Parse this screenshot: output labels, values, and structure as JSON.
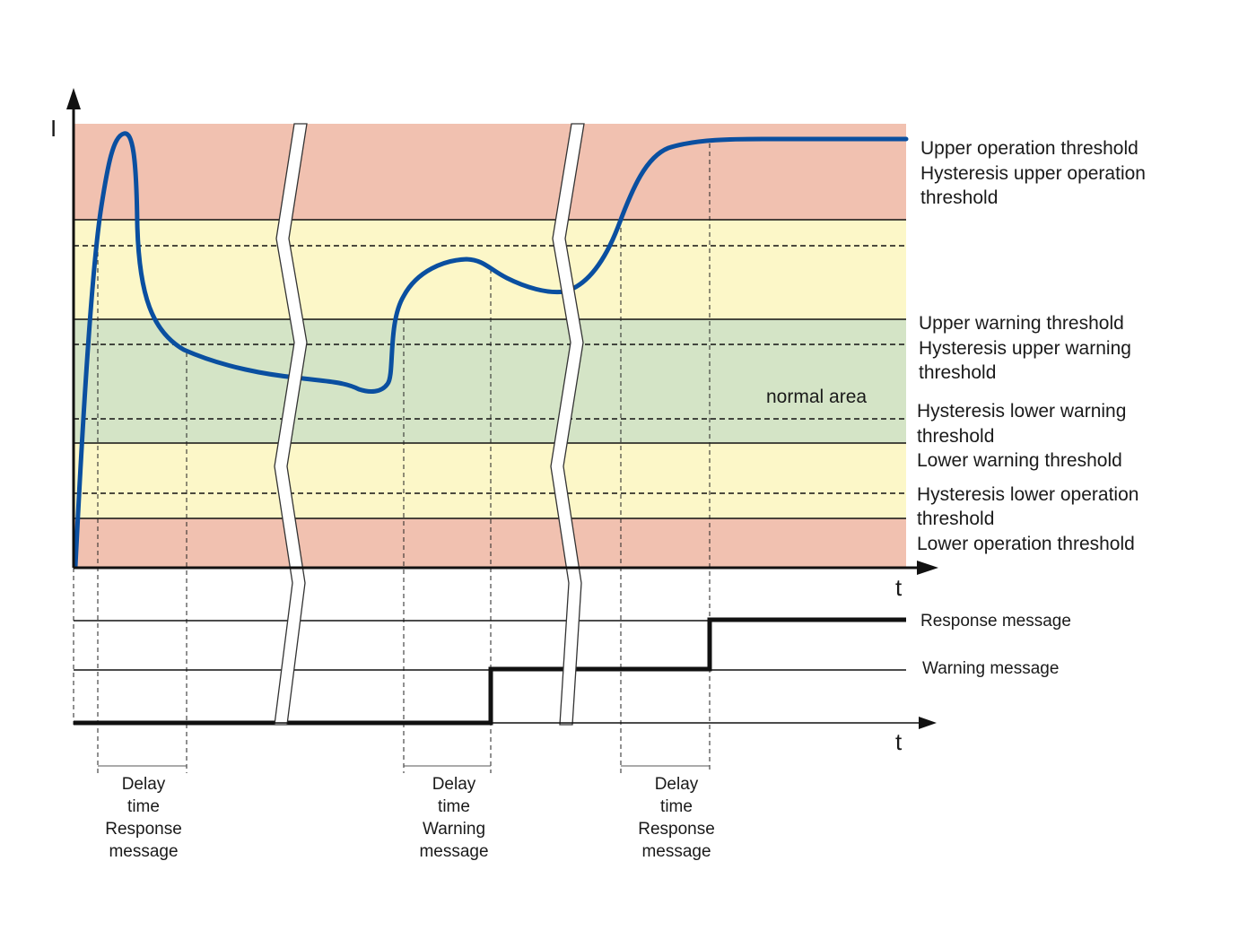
{
  "axes": {
    "y_label": "I",
    "t_label_top": "t",
    "t_label_bottom": "t"
  },
  "zones": {
    "normal_area": "normal area"
  },
  "threshold_labels": {
    "upper_operation": "Upper operation threshold",
    "hyst_upper_operation_1": "Hysteresis upper operation",
    "hyst_upper_operation_2": "threshold",
    "upper_warning": "Upper warning threshold",
    "hyst_upper_warning_1": "Hysteresis upper warning",
    "hyst_upper_warning_2": "threshold",
    "hyst_lower_warning_1": "Hysteresis lower warning",
    "hyst_lower_warning_2": "threshold",
    "lower_warning": "Lower warning threshold",
    "hyst_lower_operation_1": "Hysteresis lower operation",
    "hyst_lower_operation_2": "threshold",
    "lower_operation": "Lower operation threshold"
  },
  "message_labels": {
    "response": "Response message",
    "warning": "Warning message"
  },
  "delays": [
    {
      "line1": "Delay",
      "line2": "time",
      "line3": "Response",
      "line4": "message"
    },
    {
      "line1": "Delay",
      "line2": "time",
      "line3": "Warning",
      "line4": "message"
    },
    {
      "line1": "Delay",
      "line2": "time",
      "line3": "Response",
      "line4": "message"
    }
  ],
  "colors": {
    "operation_zone": "#f1c1b0",
    "warning_zone": "#fcf7c8",
    "normal_zone": "#d4e4c6",
    "current_curve": "#0a4fa0",
    "axis": "#111111"
  }
}
